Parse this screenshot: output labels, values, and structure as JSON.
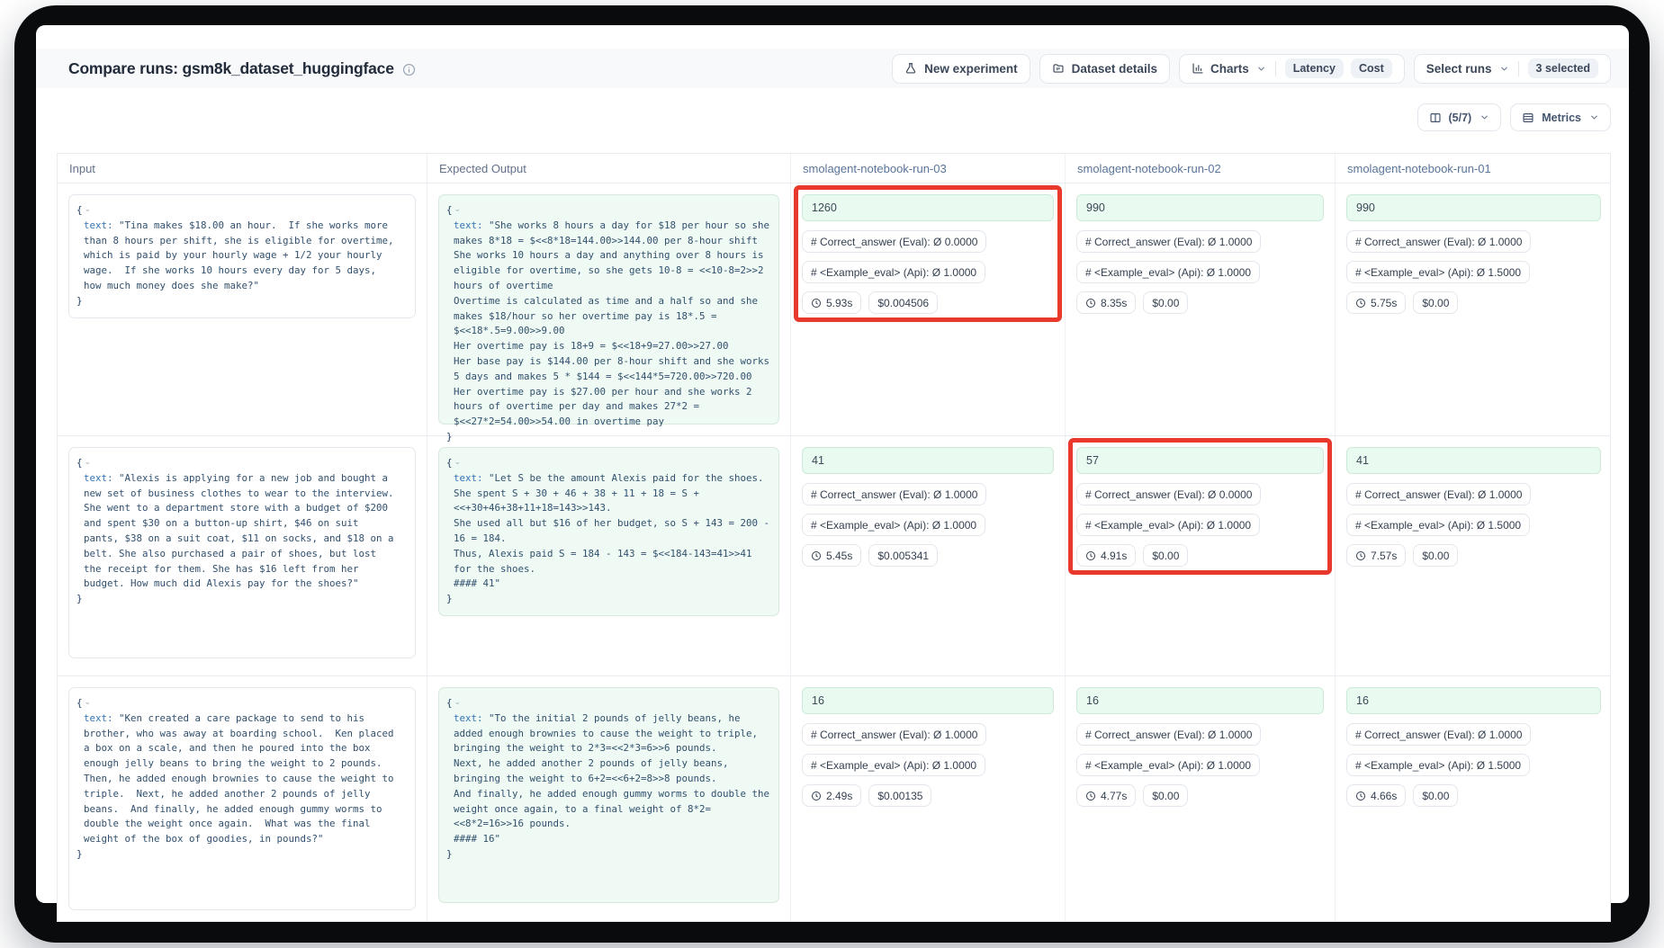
{
  "header": {
    "title": "Compare runs: gsm8k_dataset_huggingface",
    "buttons": {
      "new_experiment": "New experiment",
      "dataset_details": "Dataset details",
      "charts": "Charts",
      "latency": "Latency",
      "cost": "Cost",
      "select_runs": "Select runs",
      "selected_count": "3 selected"
    }
  },
  "view_controls": {
    "columns": "(5/7)",
    "metrics": "Metrics"
  },
  "icons": {
    "collapse_chevron": "⌄"
  },
  "colors": {
    "highlight_red": "#e8392c",
    "expected_cell_bg": "#eefaf3",
    "score_box_bg": "#e9fbf0"
  },
  "table": {
    "headers": [
      "Input",
      "Expected Output",
      "smolagent-notebook-run-03",
      "smolagent-notebook-run-02",
      "smolagent-notebook-run-01"
    ],
    "rows": [
      {
        "input": {
          "open": "{",
          "key": "text:",
          "value": "\"Tina makes $18.00 an hour.  If she works more\nthan 8 hours per shift, she is eligible for overtime,\nwhich is paid by your hourly wage + 1/2 your hourly\nwage.  If she works 10 hours every day for 5 days,\nhow much money does she make?\"",
          "close": "}"
        },
        "expected": {
          "open": "{",
          "key": "text:",
          "value": "\"She works 8 hours a day for $18 per hour so she\nmakes 8*18 = $<<8*18=144.00>>144.00 per 8-hour shift\nShe works 10 hours a day and anything over 8 hours is\neligible for overtime, so she gets 10-8 = <<10-8=2>>2\nhours of overtime\nOvertime is calculated as time and a half so and she\nmakes $18/hour so her overtime pay is 18*.5 =\n$<<18*.5=9.00>>9.00\nHer overtime pay is 18+9 = $<<18+9=27.00>>27.00\nHer base pay is $144.00 per 8-hour shift and she works\n5 days and makes 5 * $144 = $<<144*5=720.00>>720.00\nHer overtime pay is $27.00 per hour and she works 2\nhours of overtime per day and makes 27*2 =\n$<<27*2=54.00>>54.00 in overtime pay",
          "close": "}"
        },
        "runs": [
          {
            "output": "1260",
            "metrics": [
              "# Correct_answer (Eval): Ø 0.0000",
              "# <Example_eval> (Api): Ø 1.0000"
            ],
            "latency": "5.93s",
            "cost": "$0.004506",
            "highlighted": true
          },
          {
            "output": "990",
            "metrics": [
              "# Correct_answer (Eval): Ø 1.0000",
              "# <Example_eval> (Api): Ø 1.0000"
            ],
            "latency": "8.35s",
            "cost": "$0.00",
            "highlighted": false
          },
          {
            "output": "990",
            "metrics": [
              "# Correct_answer (Eval): Ø 1.0000",
              "# <Example_eval> (Api): Ø 1.5000"
            ],
            "latency": "5.75s",
            "cost": "$0.00",
            "highlighted": false
          }
        ]
      },
      {
        "input": {
          "open": "{",
          "key": "text:",
          "value": "\"Alexis is applying for a new job and bought a\nnew set of business clothes to wear to the interview.\nShe went to a department store with a budget of $200\nand spent $30 on a button-up shirt, $46 on suit\npants, $38 on a suit coat, $11 on socks, and $18 on a\nbelt. She also purchased a pair of shoes, but lost\nthe receipt for them. She has $16 left from her\nbudget. How much did Alexis pay for the shoes?\"",
          "close": "}"
        },
        "expected": {
          "open": "{",
          "key": "text:",
          "value": "\"Let S be the amount Alexis paid for the shoes.\nShe spent S + 30 + 46 + 38 + 11 + 18 = S +\n<<+30+46+38+11+18=143>>143.\nShe used all but $16 of her budget, so S + 143 = 200 -\n16 = 184.\nThus, Alexis paid S = 184 - 143 = $<<184-143=41>>41\nfor the shoes.\n#### 41\"",
          "close": "}"
        },
        "runs": [
          {
            "output": "41",
            "metrics": [
              "# Correct_answer (Eval): Ø 1.0000",
              "# <Example_eval> (Api): Ø 1.0000"
            ],
            "latency": "5.45s",
            "cost": "$0.005341",
            "highlighted": false
          },
          {
            "output": "57",
            "metrics": [
              "# Correct_answer (Eval): Ø 0.0000",
              "# <Example_eval> (Api): Ø 1.0000"
            ],
            "latency": "4.91s",
            "cost": "$0.00",
            "highlighted": true
          },
          {
            "output": "41",
            "metrics": [
              "# Correct_answer (Eval): Ø 1.0000",
              "# <Example_eval> (Api): Ø 1.5000"
            ],
            "latency": "7.57s",
            "cost": "$0.00",
            "highlighted": false
          }
        ]
      },
      {
        "input": {
          "open": "{",
          "key": "text:",
          "value": "\"Ken created a care package to send to his\nbrother, who was away at boarding school.  Ken placed\na box on a scale, and then he poured into the box\nenough jelly beans to bring the weight to 2 pounds.\nThen, he added enough brownies to cause the weight to\ntriple.  Next, he added another 2 pounds of jelly\nbeans.  And finally, he added enough gummy worms to\ndouble the weight once again.  What was the final\nweight of the box of goodies, in pounds?\"",
          "close": "}"
        },
        "expected": {
          "open": "{",
          "key": "text:",
          "value": "\"To the initial 2 pounds of jelly beans, he\nadded enough brownies to cause the weight to triple,\nbringing the weight to 2*3=<<2*3=6>>6 pounds.\nNext, he added another 2 pounds of jelly beans,\nbringing the weight to 6+2=<<6+2=8>>8 pounds.\nAnd finally, he added enough gummy worms to double the\nweight once again, to a final weight of 8*2=\n<<8*2=16>>16 pounds.\n#### 16\"",
          "close": "}"
        },
        "runs": [
          {
            "output": "16",
            "metrics": [
              "# Correct_answer (Eval): Ø 1.0000",
              "# <Example_eval> (Api): Ø 1.0000"
            ],
            "latency": "2.49s",
            "cost": "$0.00135",
            "highlighted": false
          },
          {
            "output": "16",
            "metrics": [
              "# Correct_answer (Eval): Ø 1.0000",
              "# <Example_eval> (Api): Ø 1.0000"
            ],
            "latency": "4.77s",
            "cost": "$0.00",
            "highlighted": false
          },
          {
            "output": "16",
            "metrics": [
              "# Correct_answer (Eval): Ø 1.0000",
              "# <Example_eval> (Api): Ø 1.5000"
            ],
            "latency": "4.66s",
            "cost": "$0.00",
            "highlighted": false
          }
        ]
      }
    ]
  }
}
